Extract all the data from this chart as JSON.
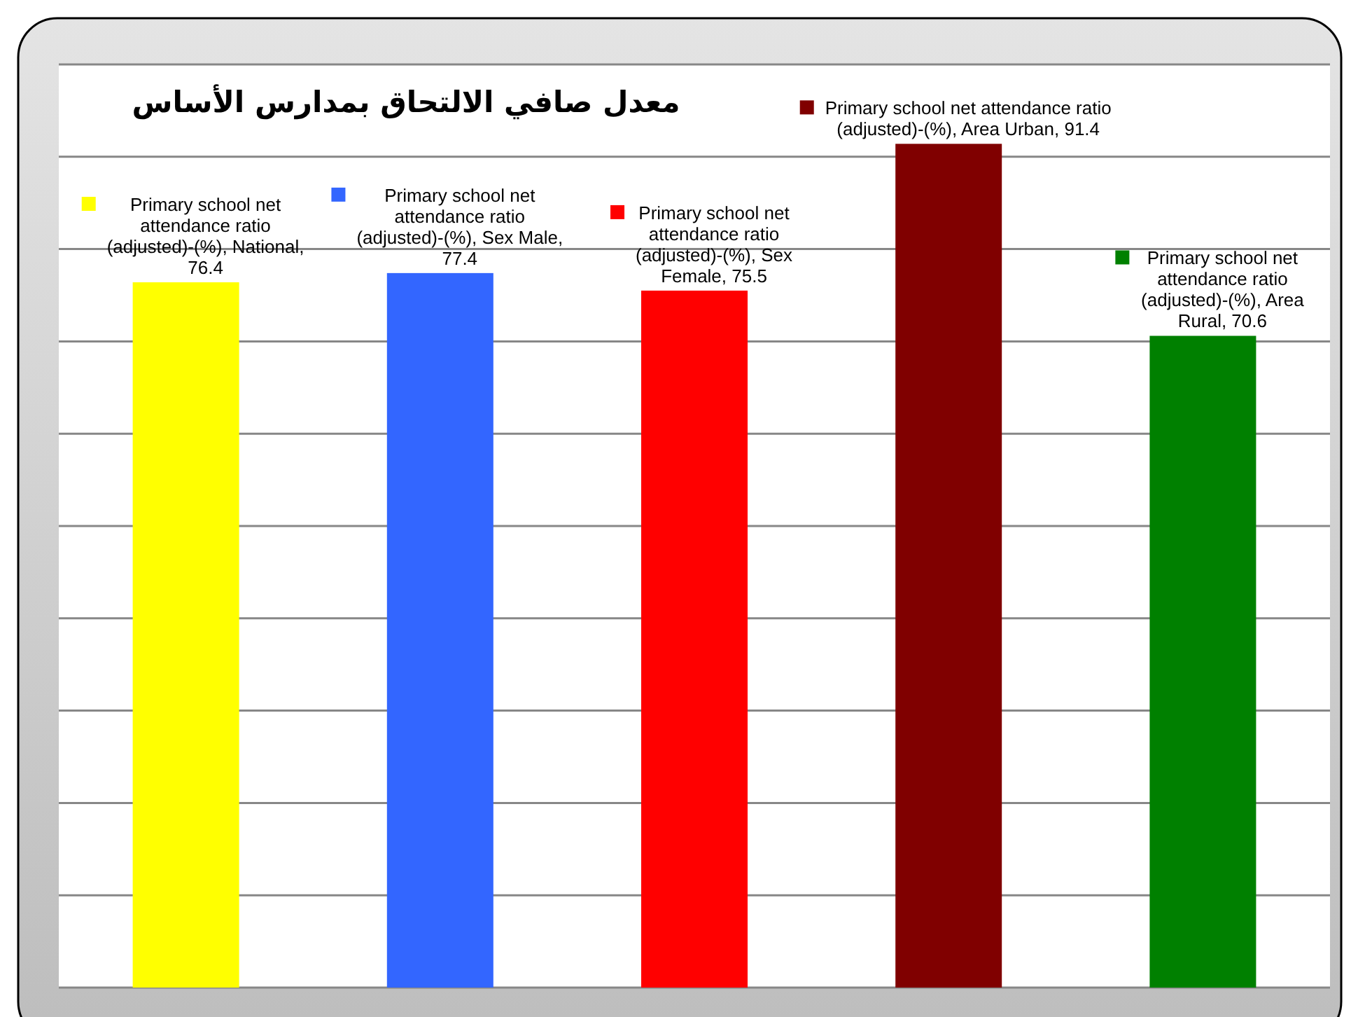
{
  "chart_data": {
    "type": "bar",
    "title": "معدل صافي الالتحاق بمدارس الأساس",
    "categories": [
      null,
      null,
      null,
      null,
      null
    ],
    "values": [
      76.4,
      77.4,
      75.5,
      91.4,
      70.6
    ],
    "colors": [
      "#ffff00",
      "#3366ff",
      "#ff0000",
      "#800000",
      "#008000"
    ],
    "value_labels": [
      "Primary school net attendance ratio (adjusted)-(%), National, 76.4",
      "Primary school net attendance ratio (adjusted)-(%), Sex Male, 77.4",
      "Primary school net attendance ratio (adjusted)-(%), Sex Female, 75.5",
      "Primary school net attendance ratio (adjusted)-(%), Area Urban, 91.4",
      "Primary school net attendance ratio (adjusted)-(%), Area Rural, 70.6"
    ],
    "ylim": [
      0,
      100
    ],
    "yticks": [
      {
        "value": 0,
        "label": null
      },
      {
        "value": 10,
        "label": null
      },
      {
        "value": 20,
        "label": null
      },
      {
        "value": 30,
        "label": null
      },
      {
        "value": 40,
        "label": null
      },
      {
        "value": 50,
        "label": null
      },
      {
        "value": 60,
        "label": null
      },
      {
        "value": 70,
        "label": null
      },
      {
        "value": 80,
        "label": null
      },
      {
        "value": 90,
        "label": null
      },
      {
        "value": 100,
        "label": null
      }
    ],
    "grid": "y"
  }
}
